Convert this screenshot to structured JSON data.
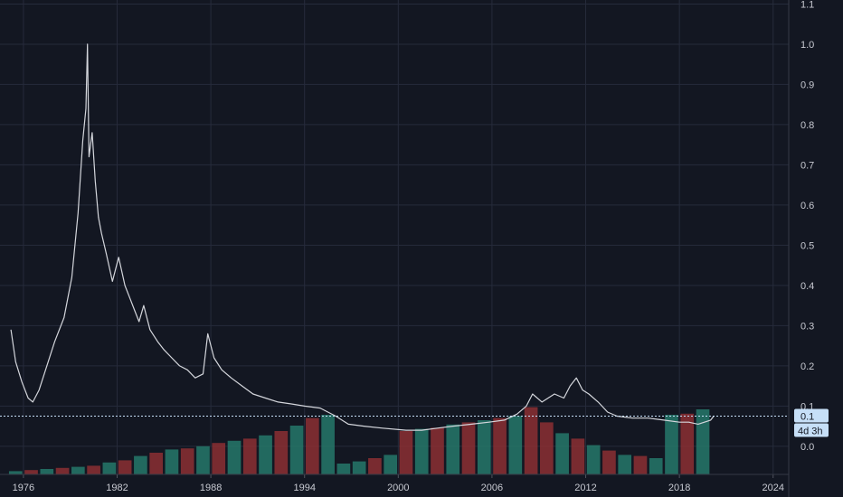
{
  "colors": {
    "background": "#131722",
    "grid": "#262b3b",
    "price_line": "#d4d6dc",
    "volume_up": "#26786a",
    "volume_down": "#8c2f33",
    "last_price_tag": "#c6dff7",
    "axis_text": "#c8cad2"
  },
  "price_tag": {
    "value": "0.1",
    "countdown": "4d 3h"
  },
  "chart_data": {
    "type": "line",
    "title": "",
    "xlabel": "",
    "ylabel": "",
    "x_ticks": [
      "1976",
      "1982",
      "1988",
      "1994",
      "2000",
      "2006",
      "2012",
      "2018",
      "2024"
    ],
    "y_ticks": [
      "1.1",
      "1.0",
      "0.9",
      "0.8",
      "0.7",
      "0.6",
      "0.5",
      "0.4",
      "0.3",
      "0.2",
      "0.1",
      "0.0"
    ],
    "xlim": [
      1974.5,
      2025
    ],
    "ylim": [
      -0.07,
      1.11
    ],
    "grid": true,
    "last_value": 0.075,
    "series": [
      {
        "type": "line",
        "x": [
          1975.2,
          1975.5,
          1975.9,
          1976.3,
          1976.6,
          1977.0,
          1977.5,
          1978.0,
          1978.6,
          1979.1,
          1979.5,
          1979.8,
          1980.0,
          1980.1,
          1980.2,
          1980.4,
          1980.6,
          1980.8,
          1981.0,
          1981.3,
          1981.7,
          1982.1,
          1982.5,
          1982.8,
          1983.1,
          1983.4,
          1983.7,
          1984.1,
          1984.6,
          1985.0,
          1985.5,
          1986.0,
          1986.5,
          1987.0,
          1987.5,
          1987.8,
          1988.2,
          1988.7,
          1989.3,
          1990.0,
          1990.7,
          1991.5,
          1992.3,
          1993.2,
          1994.0,
          1995.0,
          1996.0,
          1996.8,
          1997.8,
          1999.0,
          2000.5,
          2001.5,
          2002.5,
          2003.5,
          2004.7,
          2005.8,
          2006.8,
          2007.6,
          2008.2,
          2008.6,
          2009.2,
          2010.0,
          2010.6,
          2011.0,
          2011.4,
          2011.8,
          2012.2,
          2012.8,
          2013.4,
          2014.0,
          2015.0,
          2016.0,
          2017.0,
          2018.0,
          2018.6,
          2019.2,
          2019.6,
          2020.0,
          2020.2
        ],
        "values": [
          0.29,
          0.21,
          0.16,
          0.12,
          0.11,
          0.14,
          0.2,
          0.26,
          0.32,
          0.42,
          0.58,
          0.76,
          0.84,
          1.0,
          0.72,
          0.78,
          0.66,
          0.57,
          0.53,
          0.48,
          0.41,
          0.47,
          0.4,
          0.37,
          0.34,
          0.31,
          0.35,
          0.29,
          0.26,
          0.24,
          0.22,
          0.2,
          0.19,
          0.17,
          0.18,
          0.28,
          0.22,
          0.19,
          0.17,
          0.15,
          0.13,
          0.12,
          0.11,
          0.105,
          0.1,
          0.095,
          0.075,
          0.055,
          0.05,
          0.045,
          0.04,
          0.04,
          0.045,
          0.05,
          0.055,
          0.06,
          0.065,
          0.08,
          0.1,
          0.13,
          0.11,
          0.13,
          0.12,
          0.15,
          0.17,
          0.14,
          0.13,
          0.11,
          0.085,
          0.075,
          0.07,
          0.07,
          0.065,
          0.06,
          0.06,
          0.055,
          0.06,
          0.065,
          0.075
        ]
      },
      {
        "type": "bar",
        "name": "",
        "note_scale": "volume histogram, relative heights 0-1 of pane",
        "x": [
          1975.5,
          1976.5,
          1977.5,
          1978.5,
          1979.5,
          1980.5,
          1981.5,
          1982.5,
          1983.5,
          1984.5,
          1985.5,
          1986.5,
          1987.5,
          1988.5,
          1989.5,
          1990.5,
          1991.5,
          1992.5,
          1993.5,
          1994.5,
          1995.5,
          1996.5,
          1997.5,
          1998.5,
          1999.5,
          2000.5,
          2001.5,
          2002.5,
          2003.5,
          2004.5,
          2005.5,
          2006.5,
          2007.5,
          2008.5,
          2009.5,
          2010.5,
          2011.5,
          2012.5,
          2013.5,
          2014.5,
          2015.5,
          2016.5,
          2017.5,
          2018.5,
          2019.5
        ],
        "values": [
          0.03,
          0.04,
          0.05,
          0.06,
          0.07,
          0.08,
          0.11,
          0.13,
          0.17,
          0.2,
          0.23,
          0.24,
          0.26,
          0.29,
          0.31,
          0.33,
          0.36,
          0.4,
          0.45,
          0.52,
          0.55,
          0.1,
          0.12,
          0.15,
          0.18,
          0.4,
          0.42,
          0.43,
          0.46,
          0.48,
          0.5,
          0.52,
          0.54,
          0.62,
          0.48,
          0.38,
          0.33,
          0.27,
          0.22,
          0.18,
          0.17,
          0.15,
          0.55,
          0.56,
          0.6
        ]
      }
    ]
  }
}
